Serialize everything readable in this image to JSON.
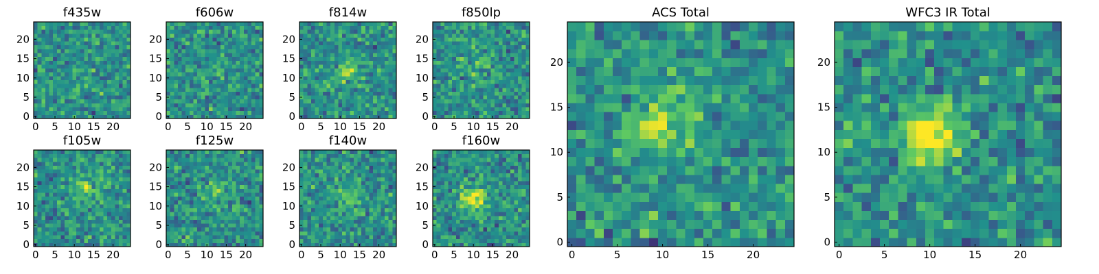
{
  "chart_data": [
    {
      "type": "heatmap",
      "title": "f435w",
      "xticks": [
        0,
        5,
        10,
        15,
        20
      ],
      "yticks": [
        0,
        5,
        10,
        15,
        20
      ],
      "xlim": [
        0,
        24
      ],
      "ylim": [
        0,
        24
      ],
      "grid": false,
      "seed": 11,
      "blob": {
        "x": 12,
        "y": 12,
        "amp": 0.05
      }
    },
    {
      "type": "heatmap",
      "title": "f606w",
      "xticks": [
        0,
        5,
        10,
        15,
        20
      ],
      "yticks": [
        0,
        5,
        10,
        15,
        20
      ],
      "xlim": [
        0,
        24
      ],
      "ylim": [
        0,
        24
      ],
      "grid": false,
      "seed": 23,
      "blob": {
        "x": 12,
        "y": 12,
        "amp": 0.05
      }
    },
    {
      "type": "heatmap",
      "title": "f814w",
      "xticks": [
        0,
        5,
        10,
        15,
        20
      ],
      "yticks": [
        0,
        5,
        10,
        15,
        20
      ],
      "xlim": [
        0,
        24
      ],
      "ylim": [
        0,
        24
      ],
      "grid": false,
      "seed": 37,
      "blob": {
        "x": 12,
        "y": 12,
        "amp": 0.25
      }
    },
    {
      "type": "heatmap",
      "title": "f850lp",
      "xticks": [
        0,
        5,
        10,
        15,
        20
      ],
      "yticks": [
        0,
        5,
        10,
        15,
        20
      ],
      "xlim": [
        0,
        24
      ],
      "ylim": [
        0,
        24
      ],
      "grid": false,
      "seed": 41,
      "blob": {
        "x": 11,
        "y": 13,
        "amp": 0.15
      }
    },
    {
      "type": "heatmap",
      "title": "f105w",
      "xticks": [
        0,
        5,
        10,
        15,
        20
      ],
      "yticks": [
        0,
        5,
        10,
        15,
        20
      ],
      "xlim": [
        0,
        24
      ],
      "ylim": [
        0,
        24
      ],
      "grid": false,
      "seed": 53,
      "blob": {
        "x": 13,
        "y": 14,
        "amp": 0.3
      }
    },
    {
      "type": "heatmap",
      "title": "f125w",
      "xticks": [
        0,
        5,
        10,
        15,
        20
      ],
      "yticks": [
        0,
        5,
        10,
        15,
        20
      ],
      "xlim": [
        0,
        24
      ],
      "ylim": [
        0,
        24
      ],
      "grid": false,
      "seed": 67,
      "blob": {
        "x": 12,
        "y": 14,
        "amp": 0.25
      }
    },
    {
      "type": "heatmap",
      "title": "f140w",
      "xticks": [
        0,
        5,
        10,
        15,
        20
      ],
      "yticks": [
        0,
        5,
        10,
        15,
        20
      ],
      "xlim": [
        0,
        24
      ],
      "ylim": [
        0,
        24
      ],
      "grid": false,
      "seed": 79,
      "blob": {
        "x": 12,
        "y": 12,
        "amp": 0.2
      }
    },
    {
      "type": "heatmap",
      "title": "f160w",
      "xticks": [
        0,
        5,
        10,
        15,
        20
      ],
      "yticks": [
        0,
        5,
        10,
        15,
        20
      ],
      "xlim": [
        0,
        24
      ],
      "ylim": [
        0,
        24
      ],
      "grid": false,
      "seed": 83,
      "blob": {
        "x": 10,
        "y": 12,
        "amp": 0.45
      }
    },
    {
      "type": "heatmap",
      "title": "ACS Total",
      "xticks": [
        0,
        5,
        10,
        15,
        20
      ],
      "yticks": [
        0,
        5,
        10,
        15,
        20
      ],
      "xlim": [
        0,
        24
      ],
      "ylim": [
        0,
        24
      ],
      "grid": false,
      "seed": 97,
      "blob": {
        "x": 10,
        "y": 13,
        "amp": 0.35
      }
    },
    {
      "type": "heatmap",
      "title": "WFC3 IR Total",
      "xticks": [
        0,
        5,
        10,
        15,
        20
      ],
      "yticks": [
        0,
        5,
        10,
        15,
        20
      ],
      "xlim": [
        0,
        24
      ],
      "ylim": [
        0,
        24
      ],
      "grid": false,
      "seed": 101,
      "blob": {
        "x": 10,
        "y": 12,
        "amp": 0.55
      }
    }
  ],
  "colormap": [
    "#440154",
    "#3b528b",
    "#21918c",
    "#5ec962",
    "#fde725"
  ]
}
